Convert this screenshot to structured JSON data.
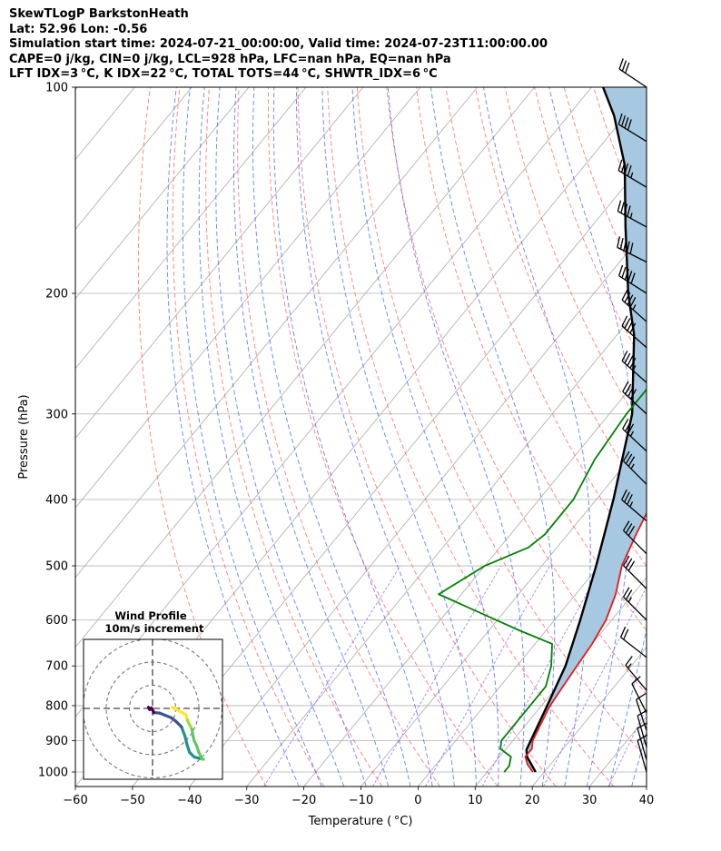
{
  "titles": [
    "SkewTLogP BarkstonHeath",
    "Lat: 52.96   Lon: -0.56",
    "Simulation start time: 2024-07-21_00:00:00, Valid time: 2024-07-23T11:00:00.00",
    "CAPE=0 j/kg, CIN=0 j/kg, LCL=928 hPa, LFC=nan hPa, EQ=nan hPa",
    "LFT IDX=3 °C, K IDX=22 °C, TOTAL TOTS=44 °C, SHWTR_IDX=6 °C"
  ],
  "chart_data": [
    {
      "type": "line",
      "subtype": "skew-T log-P",
      "xlabel": "Temperature ( °C)",
      "ylabel": "Pressure (hPa)",
      "xlim": [
        -60,
        40
      ],
      "ylim": [
        1050,
        100
      ],
      "yscale": "log",
      "x_ticks": [
        "−60",
        "−50",
        "−40",
        "−30",
        "−20",
        "−10",
        "0",
        "10",
        "20",
        "30",
        "40"
      ],
      "y_ticks": [
        "100",
        "200",
        "300",
        "400",
        "500",
        "600",
        "700",
        "800",
        "900",
        "1000"
      ],
      "grid": true,
      "colors": {
        "temperature": "#e41a1c",
        "dewpoint": "#008000",
        "parcel": "#000000",
        "cape_fill": "#a6c8e0",
        "dry_adiabat": "#ff6666",
        "moist_adiabat": "#3355ff",
        "mixing_ratio": "#8866ff",
        "isotherm": "#aaaaaa"
      },
      "series": [
        {
          "role": "temperature",
          "points": [
            [
              18,
              1000
            ],
            [
              16,
              975
            ],
            [
              14.5,
              950
            ],
            [
              14.5,
              925
            ],
            [
              13.5,
              900
            ],
            [
              12.5,
              850
            ],
            [
              11.5,
              800
            ],
            [
              11,
              750
            ],
            [
              10.5,
              700
            ],
            [
              10,
              650
            ],
            [
              9,
              600
            ],
            [
              7,
              550
            ],
            [
              4,
              500
            ],
            [
              2,
              450
            ],
            [
              0,
              400
            ],
            [
              -2,
              350
            ],
            [
              -4,
              300
            ],
            [
              -7,
              250
            ],
            [
              -10.5,
              220
            ],
            [
              -12.5,
              200
            ],
            [
              -15.5,
              180
            ],
            [
              -18,
              160
            ],
            [
              -19.5,
              150
            ],
            [
              -23,
              130
            ],
            [
              -24,
              120
            ],
            [
              -26,
              110
            ],
            [
              -26.5,
              100
            ]
          ]
        },
        {
          "role": "dewpoint",
          "points": [
            [
              13,
              1000
            ],
            [
              13,
              980
            ],
            [
              12,
              950
            ],
            [
              9,
              925
            ],
            [
              8,
              900
            ],
            [
              8,
              850
            ],
            [
              8,
              800
            ],
            [
              8,
              750
            ],
            [
              6,
              700
            ],
            [
              3,
              650
            ],
            [
              -5,
              620
            ],
            [
              -24,
              550
            ],
            [
              -20,
              500
            ],
            [
              -15,
              470
            ],
            [
              -14,
              450
            ],
            [
              -14,
              400
            ],
            [
              -16,
              350
            ],
            [
              -17,
              300
            ],
            [
              -17,
              270
            ],
            [
              -17,
              250
            ],
            [
              -19,
              220
            ],
            [
              -21,
              200
            ],
            [
              -29,
              185
            ],
            [
              -26,
              175
            ],
            [
              -18,
              150
            ],
            [
              -13,
              130
            ],
            [
              -9,
              115
            ],
            [
              -8,
              100
            ]
          ]
        },
        {
          "role": "parcel",
          "points": [
            [
              18.5,
              1000
            ],
            [
              14.8,
              950
            ],
            [
              13.7,
              928
            ],
            [
              11,
              800
            ],
            [
              8.5,
              700
            ],
            [
              4.5,
              600
            ],
            [
              -0.5,
              500
            ],
            [
              -7,
              400
            ],
            [
              -16,
              300
            ],
            [
              -27,
              230
            ],
            [
              -34,
              200
            ],
            [
              -44,
              160
            ],
            [
              -53,
              130
            ],
            [
              -62,
              110
            ],
            [
              -68,
              100
            ]
          ]
        }
      ]
    },
    {
      "type": "line",
      "subtype": "hodograph",
      "title": "Wind Profile",
      "subtitle": "10m/s increment",
      "rings_ms": [
        10,
        20,
        30
      ],
      "points_uv": [
        [
          22,
          -22
        ],
        [
          20,
          -21.5
        ],
        [
          18,
          -21
        ],
        [
          16,
          -19
        ],
        [
          15,
          -16
        ],
        [
          14,
          -12
        ],
        [
          12.5,
          -8
        ],
        [
          10,
          -5.5
        ],
        [
          8,
          -4
        ],
        [
          5.5,
          -3
        ],
        [
          3,
          -2
        ],
        [
          0.5,
          -1.8
        ],
        [
          0.2,
          -1
        ],
        [
          -0.5,
          0.2
        ],
        [
          -1.2,
          -0.5
        ],
        [
          -1.8,
          0.5
        ]
      ],
      "extra_uv": [
        [
          8.5,
          0.5
        ],
        [
          10.5,
          -0.5
        ],
        [
          13,
          -2
        ],
        [
          14,
          -2.5
        ],
        [
          14.5,
          -3
        ],
        [
          15,
          -5
        ],
        [
          16,
          -7
        ],
        [
          17,
          -9
        ],
        [
          17.5,
          -12
        ],
        [
          18,
          -14
        ],
        [
          19,
          -16
        ],
        [
          20,
          -19
        ],
        [
          21,
          -21
        ]
      ]
    }
  ],
  "barbs": [
    {
      "p": 100,
      "u": -15,
      "v": 10
    },
    {
      "p": 120,
      "u": -18,
      "v": 11
    },
    {
      "p": 140,
      "u": -20,
      "v": 12
    },
    {
      "p": 160,
      "u": -22,
      "v": 12
    },
    {
      "p": 180,
      "u": -24,
      "v": 12
    },
    {
      "p": 200,
      "u": -22,
      "v": 14
    },
    {
      "p": 220,
      "u": -18,
      "v": 16
    },
    {
      "p": 240,
      "u": -17,
      "v": 15
    },
    {
      "p": 270,
      "u": -18,
      "v": 16
    },
    {
      "p": 300,
      "u": -16,
      "v": 15
    },
    {
      "p": 340,
      "u": -15,
      "v": 14
    },
    {
      "p": 380,
      "u": -14,
      "v": 14
    },
    {
      "p": 430,
      "u": -14,
      "v": 12
    },
    {
      "p": 480,
      "u": -12,
      "v": 12
    },
    {
      "p": 540,
      "u": -11,
      "v": 11
    },
    {
      "p": 600,
      "u": -10,
      "v": 10
    },
    {
      "p": 680,
      "u": -9,
      "v": 7
    },
    {
      "p": 760,
      "u": -5,
      "v": 6
    },
    {
      "p": 820,
      "u": -3,
      "v": 6
    },
    {
      "p": 870,
      "u": -2,
      "v": 6
    },
    {
      "p": 920,
      "u": -2,
      "v": 7
    },
    {
      "p": 960,
      "u": -2,
      "v": 7
    },
    {
      "p": 1000,
      "u": -2,
      "v": 7
    }
  ]
}
